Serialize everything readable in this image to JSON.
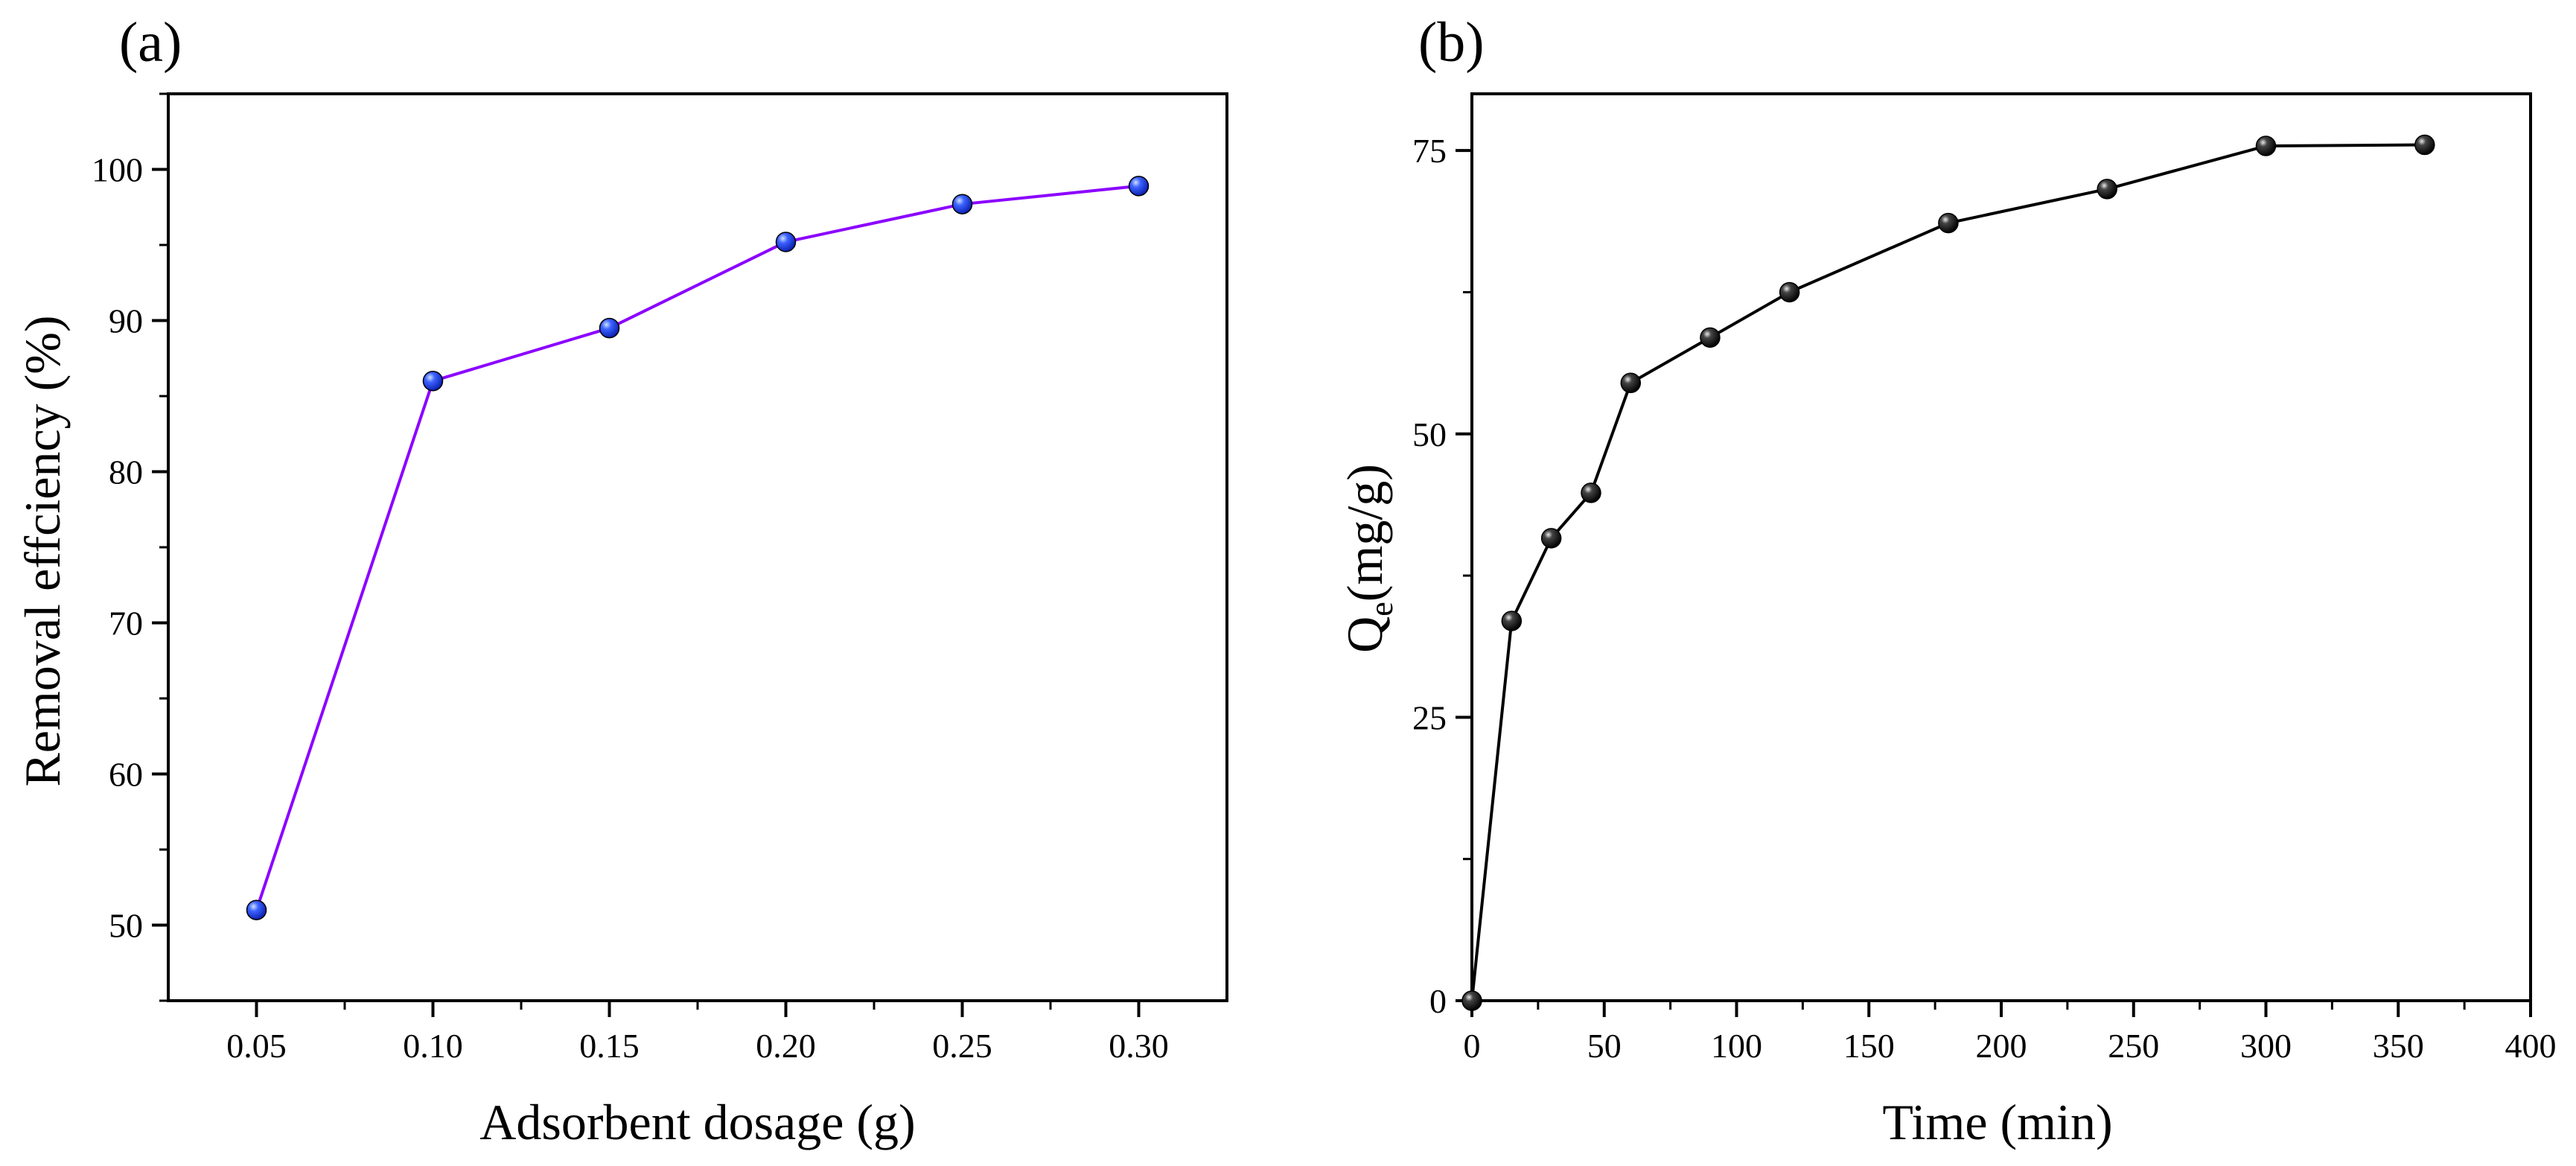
{
  "chart_data": [
    {
      "type": "line",
      "panel_label": "(a)",
      "title": "",
      "xlabel": "Adsorbent dosage (g)",
      "ylabel": "Removal effciency (%)",
      "x": [
        0.05,
        0.1,
        0.15,
        0.2,
        0.25,
        0.3
      ],
      "series": [
        {
          "name": "Removal efficiency",
          "values": [
            51.0,
            86.0,
            89.5,
            95.2,
            97.7,
            98.9
          ]
        }
      ],
      "xlim": [
        0.025,
        0.325
      ],
      "ylim": [
        45,
        105
      ],
      "xticks": [
        0.05,
        0.1,
        0.15,
        0.2,
        0.25,
        0.3
      ],
      "xtick_labels": [
        "0.05",
        "0.10",
        "0.15",
        "0.20",
        "0.25",
        "0.30"
      ],
      "yticks": [
        50,
        60,
        70,
        80,
        90,
        100
      ],
      "ytick_labels": [
        "50",
        "60",
        "70",
        "80",
        "90",
        "100"
      ],
      "line_color": "#8b00ff",
      "marker_color": "#1f3cff",
      "grid": false,
      "legend": "none"
    },
    {
      "type": "line",
      "panel_label": "(b)",
      "title": "",
      "xlabel": "Time (min)",
      "ylabel": "Qe(mg/g)",
      "ylabel_main": "Q",
      "ylabel_sub": "e",
      "ylabel_rest": "(mg/g)",
      "x": [
        0,
        15,
        30,
        45,
        60,
        90,
        120,
        180,
        240,
        300,
        360
      ],
      "series": [
        {
          "name": "Qe",
          "values": [
            0,
            33.5,
            40.8,
            44.8,
            54.5,
            58.5,
            62.5,
            68.6,
            71.6,
            75.4,
            75.5
          ]
        }
      ],
      "xlim": [
        0,
        400
      ],
      "ylim": [
        0,
        80
      ],
      "xticks": [
        0,
        50,
        100,
        150,
        200,
        250,
        300,
        350,
        400
      ],
      "xtick_labels": [
        "0",
        "50",
        "100",
        "150",
        "200",
        "250",
        "300",
        "350",
        "400"
      ],
      "yticks": [
        0,
        25,
        50,
        75
      ],
      "ytick_labels": [
        "0",
        "25",
        "50",
        "75"
      ],
      "line_color": "#000000",
      "marker_color": "#111111",
      "grid": false,
      "legend": "none"
    }
  ]
}
